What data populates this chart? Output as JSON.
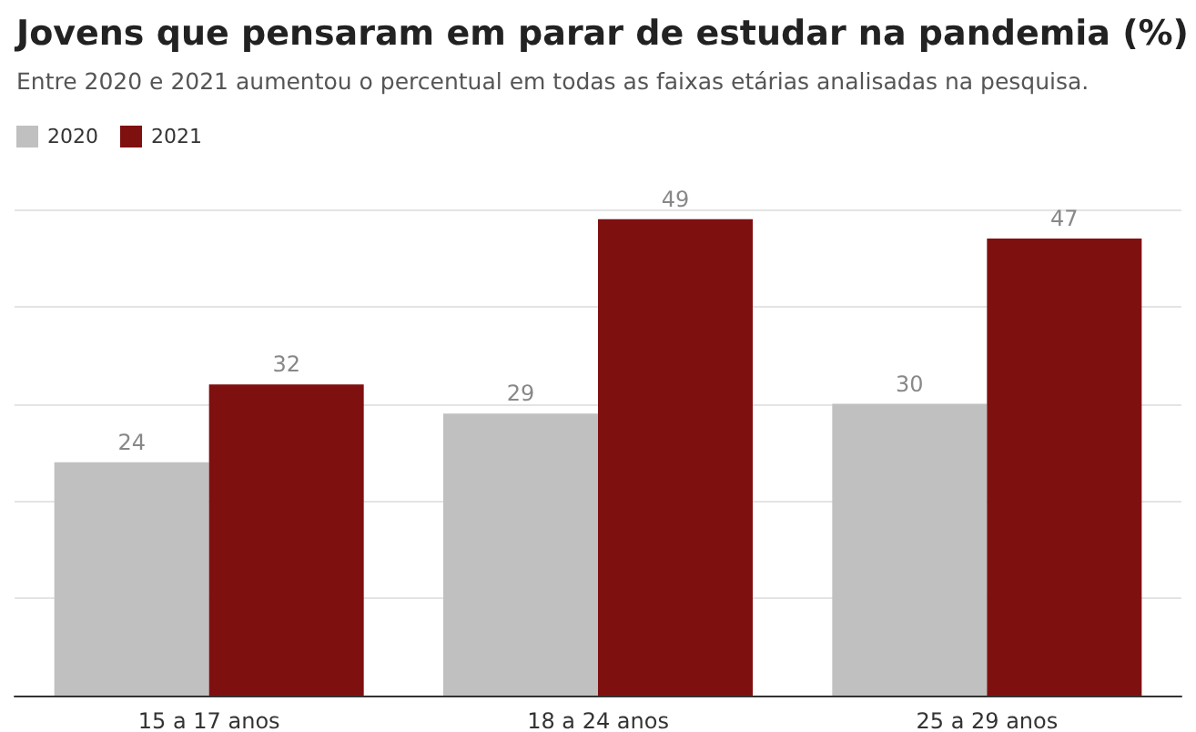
{
  "chart_data": {
    "type": "bar",
    "title": "Jovens que pensaram em parar de estudar na pandemia (%)",
    "subtitle": "Entre 2020 e 2021 aumentou o percentual em todas as faixas etárias analisadas na pesquisa.",
    "categories": [
      "15 a 17 anos",
      "18 a 24 anos",
      "25 a 29 anos"
    ],
    "series": [
      {
        "name": "2020",
        "color": "#c0c0c0",
        "values": [
          24,
          29,
          30
        ]
      },
      {
        "name": "2021",
        "color": "#7f1010",
        "values": [
          32,
          49,
          47
        ]
      }
    ],
    "ylim": [
      0,
      50
    ],
    "yticks": [
      0,
      10,
      20,
      30,
      40,
      50
    ],
    "grid": "y",
    "tick_labels": "x",
    "data_labels": true,
    "legend": "top left"
  }
}
